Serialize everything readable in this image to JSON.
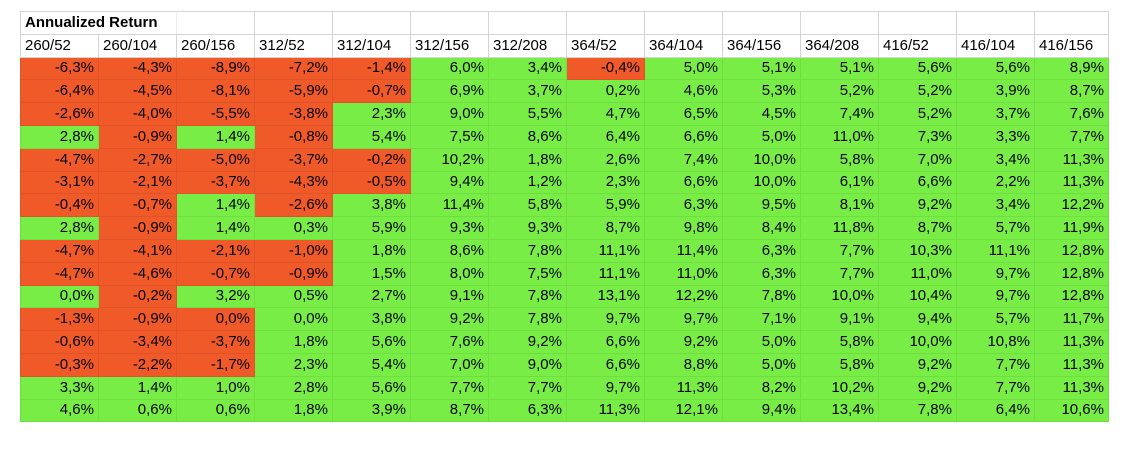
{
  "title": "Annualized Return",
  "columns": [
    "260/52",
    "260/104",
    "260/156",
    "312/52",
    "312/104",
    "312/156",
    "312/208",
    "364/52",
    "364/104",
    "364/156",
    "364/208",
    "416/52",
    "416/104",
    "416/156"
  ],
  "rows": [
    [
      "-6,3%",
      "-4,3%",
      "-8,9%",
      "-7,2%",
      "-1,4%",
      "6,0%",
      "3,4%",
      "-0,4%",
      "5,0%",
      "5,1%",
      "5,1%",
      "5,6%",
      "5,6%",
      "8,9%"
    ],
    [
      "-6,4%",
      "-4,5%",
      "-8,1%",
      "-5,9%",
      "-0,7%",
      "6,9%",
      "3,7%",
      "0,2%",
      "4,6%",
      "5,3%",
      "5,2%",
      "5,2%",
      "3,9%",
      "8,7%"
    ],
    [
      "-2,6%",
      "-4,0%",
      "-5,5%",
      "-3,8%",
      "2,3%",
      "9,0%",
      "5,5%",
      "4,7%",
      "6,5%",
      "4,5%",
      "7,4%",
      "5,2%",
      "3,7%",
      "7,6%"
    ],
    [
      "2,8%",
      "-0,9%",
      "1,4%",
      "-0,8%",
      "5,4%",
      "7,5%",
      "8,6%",
      "6,4%",
      "6,6%",
      "5,0%",
      "11,0%",
      "7,3%",
      "3,3%",
      "7,7%"
    ],
    [
      "-4,7%",
      "-2,7%",
      "-5,0%",
      "-3,7%",
      "-0,2%",
      "10,2%",
      "1,8%",
      "2,6%",
      "7,4%",
      "10,0%",
      "5,8%",
      "7,0%",
      "3,4%",
      "11,3%"
    ],
    [
      "-3,1%",
      "-2,1%",
      "-3,7%",
      "-4,3%",
      "-0,5%",
      "9,4%",
      "1,2%",
      "2,3%",
      "6,6%",
      "10,0%",
      "6,1%",
      "6,6%",
      "2,2%",
      "11,3%"
    ],
    [
      "-0,4%",
      "-0,7%",
      "1,4%",
      "-2,6%",
      "3,8%",
      "11,4%",
      "5,8%",
      "5,9%",
      "6,3%",
      "9,5%",
      "8,1%",
      "9,2%",
      "3,4%",
      "12,2%"
    ],
    [
      "2,8%",
      "-0,9%",
      "1,4%",
      "0,3%",
      "5,9%",
      "9,3%",
      "9,3%",
      "8,7%",
      "9,8%",
      "8,4%",
      "11,8%",
      "8,7%",
      "5,7%",
      "11,9%"
    ],
    [
      "-4,7%",
      "-4,1%",
      "-2,1%",
      "-1,0%",
      "1,8%",
      "8,6%",
      "7,8%",
      "11,1%",
      "11,4%",
      "6,3%",
      "7,7%",
      "10,3%",
      "11,1%",
      "12,8%"
    ],
    [
      "-4,7%",
      "-4,6%",
      "-0,7%",
      "-0,9%",
      "1,5%",
      "8,0%",
      "7,5%",
      "11,1%",
      "11,0%",
      "6,3%",
      "7,7%",
      "11,0%",
      "9,7%",
      "12,8%"
    ],
    [
      "0,0%",
      "-0,2%",
      "3,2%",
      "0,5%",
      "2,7%",
      "9,1%",
      "7,8%",
      "13,1%",
      "12,2%",
      "7,8%",
      "10,0%",
      "10,4%",
      "9,7%",
      "12,8%"
    ],
    [
      "-1,3%",
      "-0,9%",
      "0,0%",
      "0,0%",
      "3,8%",
      "9,2%",
      "7,8%",
      "9,7%",
      "9,7%",
      "7,1%",
      "9,1%",
      "9,4%",
      "5,7%",
      "11,7%"
    ],
    [
      "-0,6%",
      "-3,4%",
      "-3,7%",
      "1,8%",
      "5,6%",
      "7,6%",
      "9,2%",
      "6,6%",
      "9,2%",
      "5,0%",
      "5,8%",
      "10,0%",
      "10,8%",
      "11,3%"
    ],
    [
      "-0,3%",
      "-2,2%",
      "-1,7%",
      "2,3%",
      "5,4%",
      "7,0%",
      "9,0%",
      "6,6%",
      "8,8%",
      "5,0%",
      "5,8%",
      "9,2%",
      "7,7%",
      "11,3%"
    ],
    [
      "3,3%",
      "1,4%",
      "1,0%",
      "2,8%",
      "5,6%",
      "7,7%",
      "7,7%",
      "9,7%",
      "11,3%",
      "8,2%",
      "10,2%",
      "9,2%",
      "7,7%",
      "11,3%"
    ],
    [
      "4,6%",
      "0,6%",
      "0,6%",
      "1,8%",
      "3,9%",
      "8,7%",
      "6,3%",
      "11,3%",
      "12,1%",
      "9,4%",
      "13,4%",
      "7,8%",
      "6,4%",
      "10,6%"
    ]
  ],
  "cell_colors": [
    "RRRRRGGRGGGGGG",
    "RRRRRGGGGGGGGG",
    "RRRRGGGGGGGGGG",
    "GRGRGGGGGGGGGG",
    "RRRRRGGGGGGGGG",
    "RRRRRGGGGGGGGG",
    "RRGRGGGGGGGGGG",
    "GRGGGGGGGGGGGG",
    "RRRRGGGGGGGGGG",
    "RRRRGGGGGGGGGG",
    "GRGGGGGGGGGGGG",
    "RRRGGGGGGGGGGG",
    "RRRGGGGGGGGGGG",
    "RRRGGGGGGGGGGG",
    "GGGGGGGGGGGGGG",
    "GGGGGGGGGGGGGG"
  ],
  "colors": {
    "negative": "#f05a28",
    "positive": "#78ed45",
    "gridline": "#d4d4d4"
  }
}
